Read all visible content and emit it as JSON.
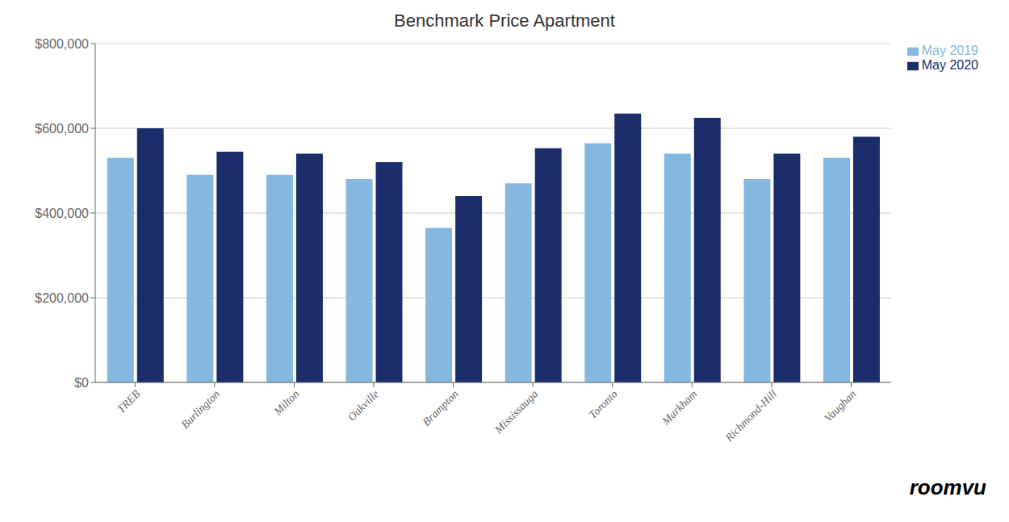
{
  "chart_data": {
    "type": "bar",
    "title": "Benchmark Price Apartment",
    "categories": [
      "TREB",
      "Burlington",
      "Milton",
      "Oakville",
      "Brampton",
      "Mississauga",
      "Toronto",
      "Markham",
      "Richmond-Hill",
      "Vaughan"
    ],
    "series": [
      {
        "name": "May 2019",
        "color": "#85B8E0",
        "values": [
          530000,
          490000,
          490000,
          480000,
          365000,
          470000,
          565000,
          540000,
          480000,
          530000
        ]
      },
      {
        "name": "May 2020",
        "color": "#1B2D6B",
        "values": [
          600000,
          545000,
          540000,
          520000,
          440000,
          553000,
          635000,
          625000,
          540000,
          580000
        ]
      }
    ],
    "ylim": [
      0,
      800000
    ],
    "yticks": [
      {
        "value": 0,
        "label": "$0"
      },
      {
        "value": 200000,
        "label": "$200,000"
      },
      {
        "value": 400000,
        "label": "$400,000"
      },
      {
        "value": 600000,
        "label": "$600,000"
      },
      {
        "value": 800000,
        "label": "$800,000"
      }
    ],
    "grid": true,
    "legend": "right",
    "annotations": [
      "roomvu"
    ]
  }
}
